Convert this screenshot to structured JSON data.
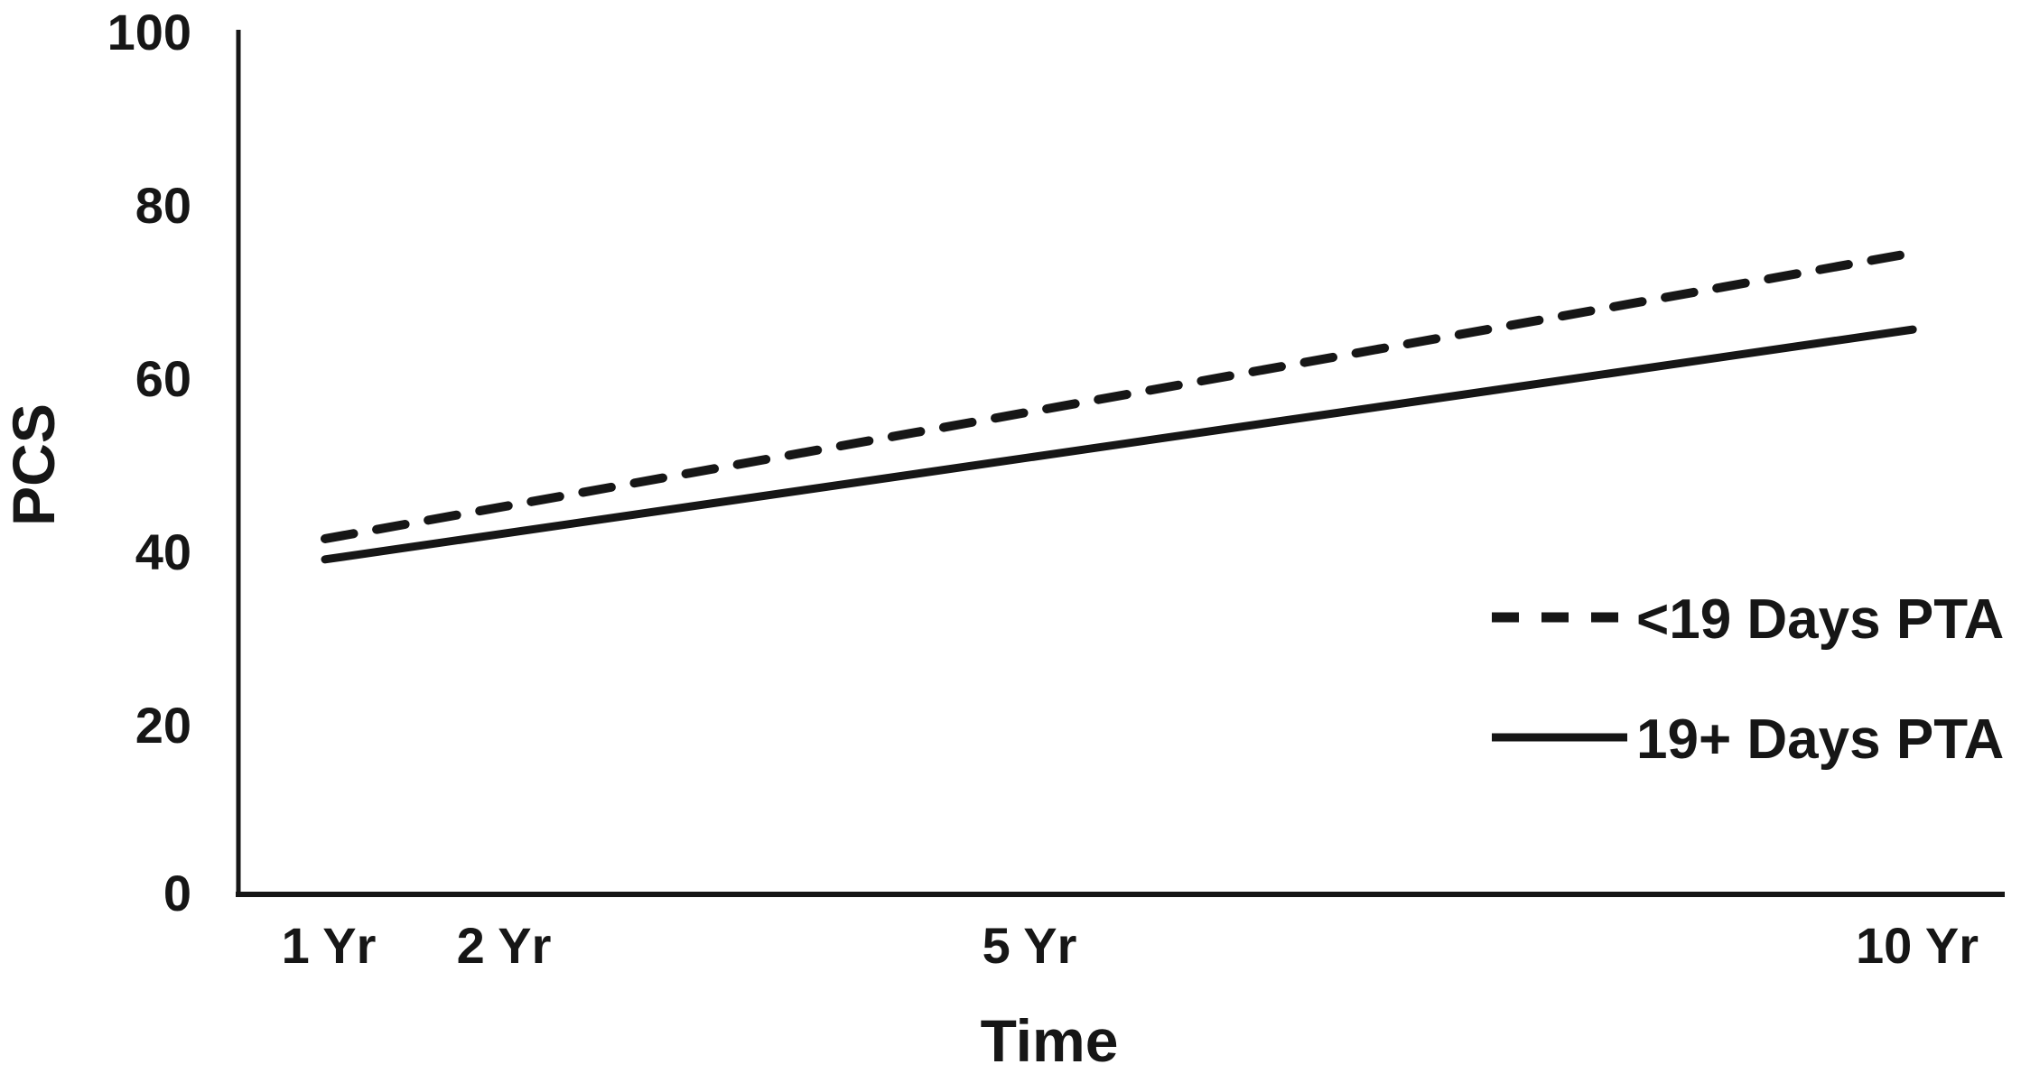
{
  "figure": {
    "background_color": "#ffffff",
    "ink_color": "#161616"
  },
  "chart_data": {
    "type": "line",
    "title": "",
    "xlabel": "Time",
    "ylabel": "PCS",
    "ylim": [
      0,
      100
    ],
    "y_ticks": [
      0,
      20,
      40,
      60,
      80,
      100
    ],
    "x_axis_scale": "linear-years",
    "xlim_years": [
      1,
      10
    ],
    "x_tick_years": [
      1,
      2,
      5,
      10
    ],
    "x_tick_labels": [
      "1 Yr",
      "2 Yr",
      "5 Yr",
      "10 Yr"
    ],
    "grid": false,
    "legend_position": "right-middle",
    "series": [
      {
        "name": "<19 Days PTA",
        "style": "dashed",
        "color": "#161616",
        "x_years": [
          1,
          10
        ],
        "values": [
          41.2,
          74.4
        ],
        "values_at_ticks": [
          41.2,
          44.9,
          56.0,
          74.4
        ]
      },
      {
        "name": "19+ Days PTA",
        "style": "solid",
        "color": "#161616",
        "x_years": [
          1,
          10
        ],
        "values": [
          38.8,
          65.5
        ],
        "values_at_ticks": [
          38.8,
          41.8,
          50.7,
          65.5
        ]
      }
    ]
  }
}
